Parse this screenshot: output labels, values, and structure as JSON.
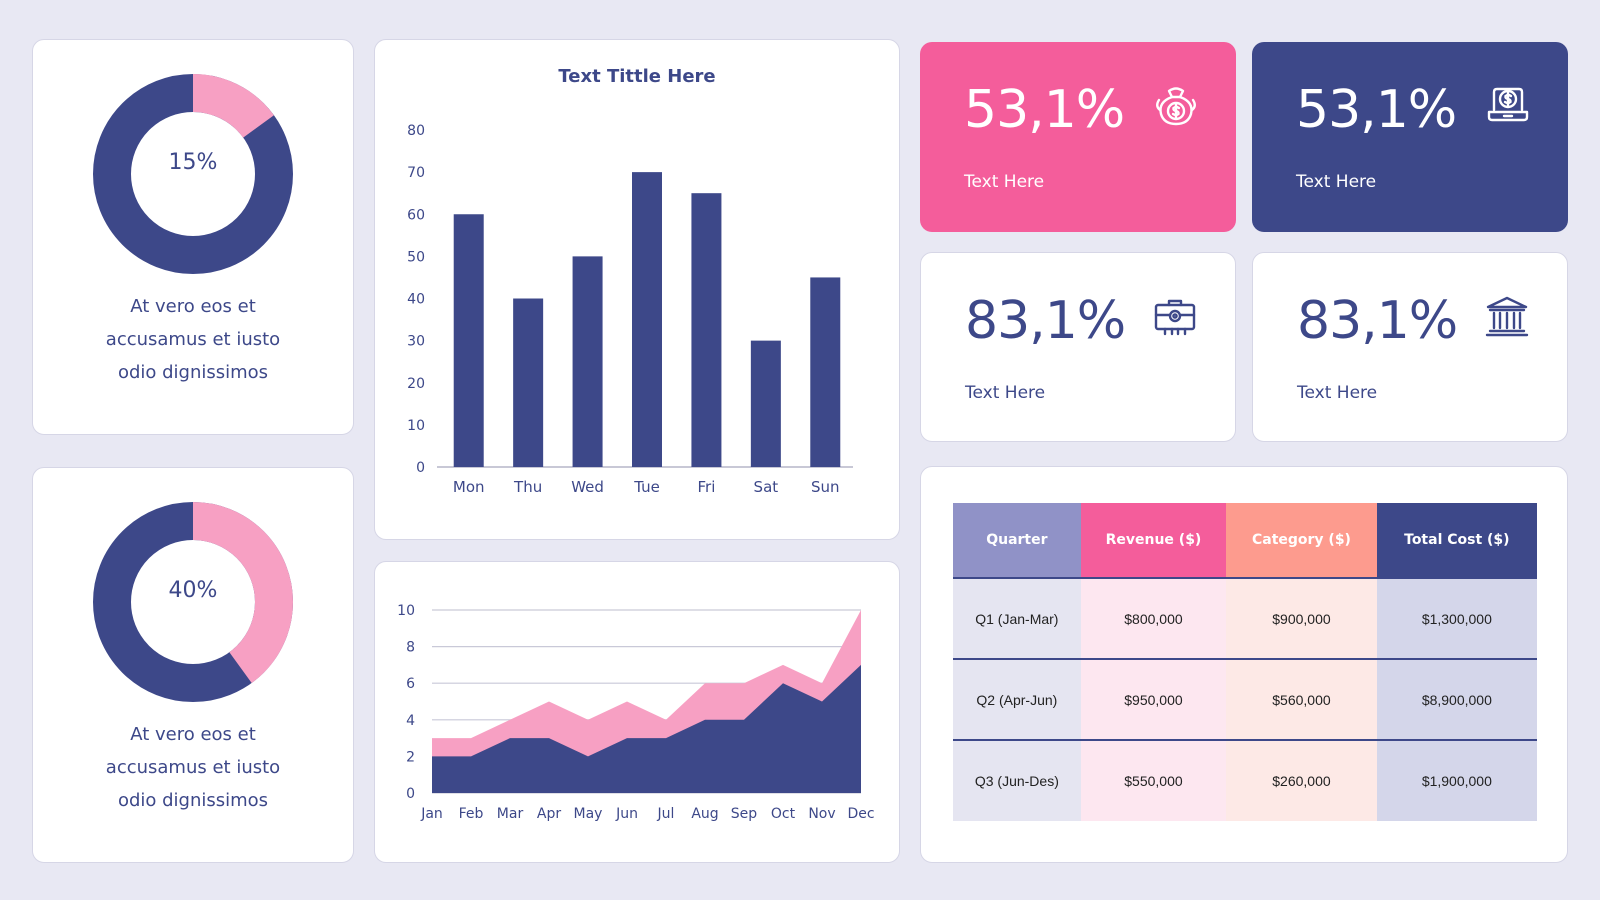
{
  "colors": {
    "navy": "#3d4889",
    "pink": "#f45d9b",
    "light_pink": "#f7a0c3",
    "salmon": "#fd9b8e",
    "lavender": "#9092c7"
  },
  "donuts": [
    {
      "percent": 15,
      "label": "15%",
      "caption": [
        "At vero eos et",
        "accusamus et iusto",
        "odio dignissimos"
      ]
    },
    {
      "percent": 40,
      "label": "40%",
      "caption": [
        "At vero eos et",
        "accusamus et iusto",
        "odio dignissimos"
      ]
    }
  ],
  "stats": [
    {
      "value": "53,1%",
      "label": "Text Here",
      "icon": "money-bag-icon"
    },
    {
      "value": "53,1%",
      "label": "Text Here",
      "icon": "laptop-dollar-icon"
    },
    {
      "value": "83,1%",
      "label": "Text Here",
      "icon": "briefcase-icon"
    },
    {
      "value": "83,1%",
      "label": "Text Here",
      "icon": "bank-icon"
    }
  ],
  "table": {
    "headers": [
      "Quarter",
      "Revenue ($)",
      "Category ($)",
      "Total Cost ($)"
    ],
    "rows": [
      [
        "Q1 (Jan-Mar)",
        "$800,000",
        "$900,000",
        "$1,300,000"
      ],
      [
        "Q2 (Apr-Jun)",
        "$950,000",
        "$560,000",
        "$8,900,000"
      ],
      [
        "Q3 (Jun-Des)",
        "$550,000",
        "$260,000",
        "$1,900,000"
      ]
    ]
  },
  "chart_data": [
    {
      "type": "bar",
      "title": "Text Tittle Here",
      "categories": [
        "Mon",
        "Thu",
        "Wed",
        "Tue",
        "Fri",
        "Sat",
        "Sun"
      ],
      "values": [
        60,
        40,
        50,
        70,
        65,
        30,
        45
      ],
      "ylim": [
        0,
        80
      ],
      "yticks": [
        0,
        10,
        20,
        30,
        40,
        50,
        60,
        70,
        80
      ],
      "grid": false
    },
    {
      "type": "area",
      "categories": [
        "Jan",
        "Feb",
        "Mar",
        "Apr",
        "May",
        "Jun",
        "Jul",
        "Aug",
        "Sep",
        "Oct",
        "Nov",
        "Dec"
      ],
      "series": [
        {
          "values": [
            2,
            2,
            3,
            3,
            2,
            3,
            3,
            4,
            4,
            6,
            5,
            7
          ]
        },
        {
          "values": [
            3,
            3,
            4,
            5,
            4,
            5,
            4,
            6,
            6,
            7,
            6,
            10
          ]
        }
      ],
      "ylim": [
        0,
        10
      ],
      "yticks": [
        0,
        2,
        4,
        6,
        8,
        10
      ],
      "grid": true
    }
  ]
}
